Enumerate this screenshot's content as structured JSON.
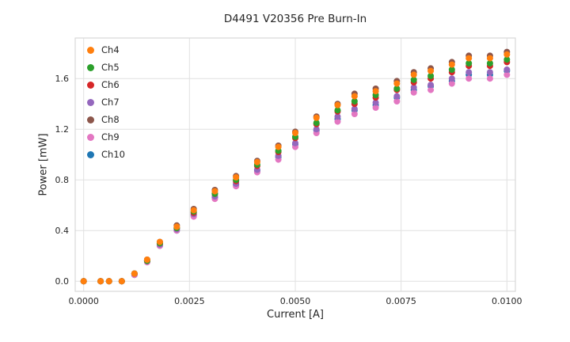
{
  "chart_data": {
    "type": "scatter",
    "title": "D4491 V20356 Pre Burn-In",
    "xlabel": "Current [A]",
    "ylabel": "Power [mW]",
    "xlim": [
      -0.0002,
      0.0102
    ],
    "ylim": [
      -0.08,
      1.92
    ],
    "grid": true,
    "legend_position": "upper left",
    "grid_color": "#e1e1e1",
    "frame_color": "#d8d8d8",
    "text_color": "#262626",
    "xticks": {
      "values": [
        0.0,
        0.0025,
        0.005,
        0.0075,
        0.01
      ],
      "labels": [
        "0.0000",
        "0.0025",
        "0.0050",
        "0.0075",
        "0.0100"
      ]
    },
    "yticks": {
      "values": [
        0.0,
        0.4,
        0.8,
        1.2,
        1.6
      ],
      "labels": [
        "0.0",
        "0.4",
        "0.8",
        "1.2",
        "1.6"
      ]
    },
    "x": [
      0.0,
      0.0004,
      0.0006,
      0.0009,
      0.0012,
      0.0015,
      0.0018,
      0.0022,
      0.0026,
      0.0031,
      0.0036,
      0.0041,
      0.0046,
      0.005,
      0.0055,
      0.006,
      0.0064,
      0.0069,
      0.0074,
      0.0078,
      0.0082,
      0.0087,
      0.0091,
      0.0096,
      0.01
    ],
    "series": [
      {
        "name": "Ch4",
        "color": "#ff7f0e",
        "values": [
          0.0,
          0.0,
          0.0,
          0.0,
          0.06,
          0.17,
          0.31,
          0.43,
          0.56,
          0.71,
          0.82,
          0.94,
          1.06,
          1.17,
          1.29,
          1.39,
          1.46,
          1.5,
          1.56,
          1.63,
          1.66,
          1.71,
          1.76,
          1.76,
          1.79
        ]
      },
      {
        "name": "Ch5",
        "color": "#2ca02c",
        "values": [
          0.0,
          0.0,
          0.0,
          0.0,
          0.06,
          0.16,
          0.3,
          0.42,
          0.55,
          0.69,
          0.8,
          0.92,
          1.03,
          1.14,
          1.25,
          1.35,
          1.42,
          1.47,
          1.52,
          1.59,
          1.62,
          1.67,
          1.72,
          1.72,
          1.75
        ]
      },
      {
        "name": "Ch6",
        "color": "#d62728",
        "values": [
          0.0,
          0.0,
          0.0,
          0.0,
          0.06,
          0.16,
          0.3,
          0.42,
          0.54,
          0.69,
          0.79,
          0.91,
          1.02,
          1.13,
          1.24,
          1.34,
          1.4,
          1.45,
          1.51,
          1.57,
          1.6,
          1.65,
          1.7,
          1.7,
          1.73
        ]
      },
      {
        "name": "Ch7",
        "color": "#9467bd",
        "values": [
          0.0,
          0.0,
          0.0,
          0.0,
          0.06,
          0.16,
          0.29,
          0.41,
          0.53,
          0.67,
          0.77,
          0.88,
          0.99,
          1.09,
          1.2,
          1.3,
          1.36,
          1.41,
          1.46,
          1.53,
          1.55,
          1.6,
          1.65,
          1.65,
          1.67
        ]
      },
      {
        "name": "Ch8",
        "color": "#8c564b",
        "values": [
          0.0,
          0.0,
          0.0,
          0.0,
          0.06,
          0.17,
          0.31,
          0.44,
          0.57,
          0.72,
          0.83,
          0.95,
          1.07,
          1.18,
          1.3,
          1.4,
          1.48,
          1.52,
          1.58,
          1.65,
          1.68,
          1.73,
          1.78,
          1.78,
          1.81
        ]
      },
      {
        "name": "Ch9",
        "color": "#e377c2",
        "values": [
          0.0,
          0.0,
          0.0,
          0.0,
          0.05,
          0.15,
          0.28,
          0.4,
          0.51,
          0.65,
          0.75,
          0.86,
          0.96,
          1.06,
          1.17,
          1.26,
          1.32,
          1.37,
          1.42,
          1.49,
          1.51,
          1.56,
          1.6,
          1.6,
          1.63
        ]
      },
      {
        "name": "Ch10",
        "color": "#1f77b4",
        "values": [
          0.0,
          0.0,
          0.0,
          0.0,
          0.05,
          0.16,
          0.28,
          0.4,
          0.52,
          0.66,
          0.76,
          0.87,
          0.98,
          1.08,
          1.19,
          1.28,
          1.35,
          1.39,
          1.45,
          1.51,
          1.54,
          1.58,
          1.63,
          1.63,
          1.66
        ]
      }
    ]
  }
}
